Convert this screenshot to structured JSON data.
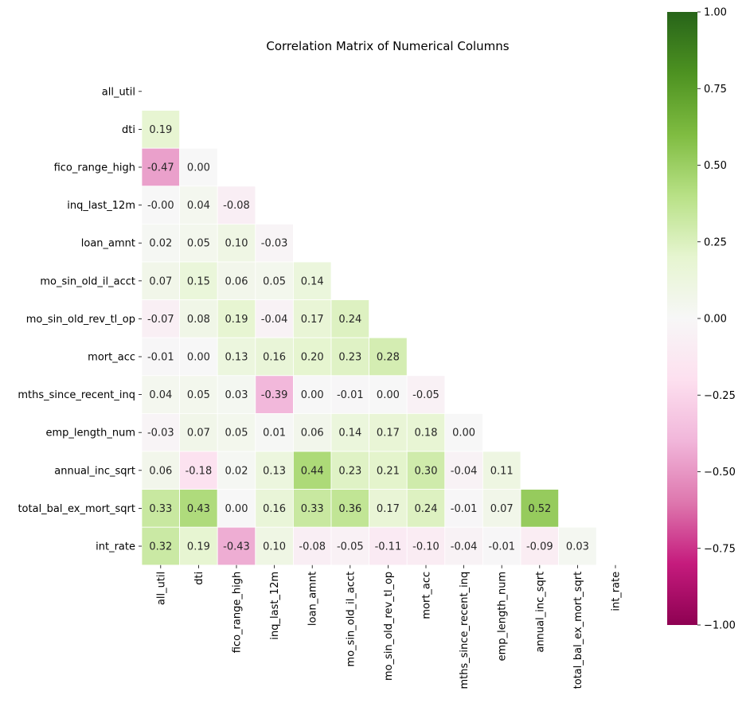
{
  "chart_data": {
    "type": "heatmap",
    "title": "Correlation Matrix of Numerical Columns",
    "labels": [
      "all_util",
      "dti",
      "fico_range_high",
      "inq_last_12m",
      "loan_amnt",
      "mo_sin_old_il_acct",
      "mo_sin_old_rev_tl_op",
      "mort_acc",
      "mths_since_recent_inq",
      "emp_length_num",
      "annual_inc_sqrt",
      "total_bal_ex_mort_sqrt",
      "int_rate"
    ],
    "mask": "upper-triangle-including-diagonal",
    "matrix": [
      [],
      [
        "0.19"
      ],
      [
        "-0.47",
        "0.00"
      ],
      [
        "-0.00",
        "0.04",
        "-0.08"
      ],
      [
        "0.02",
        "0.05",
        "0.10",
        "-0.03"
      ],
      [
        "0.07",
        "0.15",
        "0.06",
        "0.05",
        "0.14"
      ],
      [
        "-0.07",
        "0.08",
        "0.19",
        "-0.04",
        "0.17",
        "0.24"
      ],
      [
        "-0.01",
        "0.00",
        "0.13",
        "0.16",
        "0.20",
        "0.23",
        "0.28"
      ],
      [
        "0.04",
        "0.05",
        "0.03",
        "-0.39",
        "0.00",
        "-0.01",
        "0.00",
        "-0.05"
      ],
      [
        "-0.03",
        "0.07",
        "0.05",
        "0.01",
        "0.06",
        "0.14",
        "0.17",
        "0.18",
        "0.00"
      ],
      [
        "0.06",
        "-0.18",
        "0.02",
        "0.13",
        "0.44",
        "0.23",
        "0.21",
        "0.30",
        "-0.04",
        "0.11"
      ],
      [
        "0.33",
        "0.43",
        "0.00",
        "0.16",
        "0.33",
        "0.36",
        "0.17",
        "0.24",
        "-0.01",
        "0.07",
        "0.52"
      ],
      [
        "0.32",
        "0.19",
        "-0.43",
        "0.10",
        "-0.08",
        "-0.05",
        "-0.11",
        "-0.10",
        "-0.04",
        "-0.01",
        "-0.09",
        "0.03"
      ]
    ],
    "colorbar": {
      "colormap": "PiYG",
      "vmin": -1.0,
      "vmax": 1.0,
      "ticks": [
        "1.00",
        "0.75",
        "0.50",
        "0.25",
        "0.00",
        "−0.25",
        "−0.50",
        "−0.75",
        "−1.00"
      ]
    },
    "annotation_format": "2 decimals"
  }
}
